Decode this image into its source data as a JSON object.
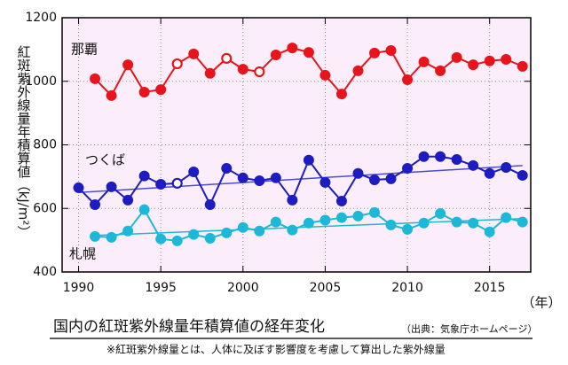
{
  "chart_data": {
    "type": "line",
    "title": "国内の紅斑紫外線量年積算値の経年変化",
    "source": "（出典：気象庁ホームページ）",
    "note": "※紅斑紫外線量とは、人体に及ぼす影響度を考慮して算出した紫外線量",
    "y_label": "紅斑紫外線量年積算値（kJ/m²）",
    "x_label": "（年）",
    "x": [
      1990,
      1991,
      1992,
      1993,
      1994,
      1995,
      1996,
      1997,
      1998,
      1999,
      2000,
      2001,
      2002,
      2003,
      2004,
      2005,
      2006,
      2007,
      2008,
      2009,
      2010,
      2011,
      2012,
      2013,
      2014,
      2015,
      2016,
      2017
    ],
    "series": [
      {
        "name": "那覇",
        "color": "#e8141b",
        "values": [
          null,
          1008,
          955,
          1052,
          966,
          974,
          1055,
          1086,
          1025,
          1072,
          1038,
          1030,
          1083,
          1105,
          1091,
          1019,
          960,
          1033,
          1089,
          1097,
          1005,
          1061,
          1033,
          1075,
          1052,
          1064,
          1069,
          1047
        ],
        "open_markers": [
          1996,
          1999,
          2001
        ]
      },
      {
        "name": "つくば",
        "color": "#1c1cc0",
        "values": [
          665,
          612,
          668,
          626,
          702,
          676,
          679,
          715,
          612,
          726,
          696,
          687,
          696,
          626,
          752,
          682,
          623,
          710,
          690,
          693,
          726,
          763,
          763,
          754,
          735,
          710,
          729,
          704
        ],
        "open_markers": [
          1996
        ],
        "trend": {
          "x": [
            1990,
            2017
          ],
          "values": [
            650,
            735
          ],
          "color": "#4a4ad6"
        }
      },
      {
        "name": "札幌",
        "color": "#1cb8d8",
        "values": [
          null,
          512,
          509,
          529,
          596,
          504,
          498,
          518,
          506,
          523,
          540,
          529,
          557,
          532,
          554,
          563,
          571,
          576,
          587,
          548,
          534,
          554,
          584,
          557,
          554,
          526,
          571,
          557
        ],
        "open_markers": [],
        "trend": {
          "x": [
            1991,
            2017
          ],
          "values": [
            515,
            568
          ],
          "color": "#1cb8d8"
        }
      }
    ],
    "xlim": [
      1989,
      2017.5
    ],
    "ylim": [
      400,
      1200
    ],
    "xticks": [
      1990,
      1995,
      2000,
      2005,
      2010,
      2015
    ],
    "yticks": [
      400,
      600,
      800,
      1000,
      1200
    ],
    "grid": true
  }
}
